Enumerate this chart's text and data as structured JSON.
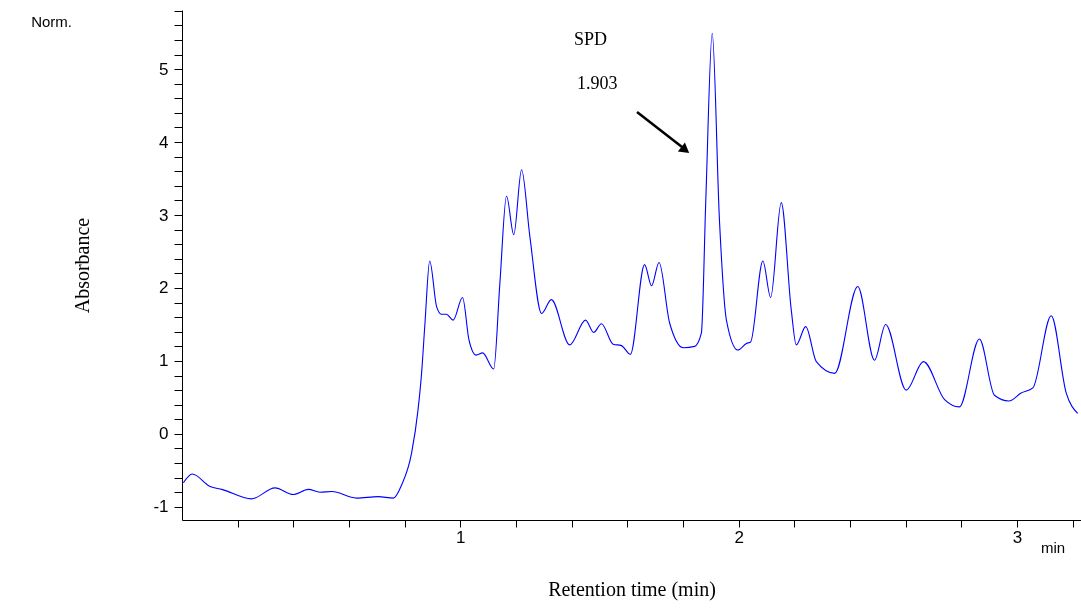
{
  "chart_data": {
    "type": "line",
    "xlabel": "Retention time (min)",
    "ylabel": "Absorbance",
    "xlim": [
      0,
      3.23
    ],
    "ylim": [
      -1.18,
      5.81
    ],
    "xticks": [
      {
        "value": 0.2,
        "label": null
      },
      {
        "value": 0.4,
        "label": null
      },
      {
        "value": 0.6,
        "label": null
      },
      {
        "value": 0.8,
        "label": null
      },
      1,
      {
        "value": 1.2,
        "label": null
      },
      {
        "value": 1.4,
        "label": null
      },
      {
        "value": 1.6,
        "label": null
      },
      {
        "value": 1.8,
        "label": null
      },
      2,
      {
        "value": 2.2,
        "label": null
      },
      {
        "value": 2.4,
        "label": null
      },
      {
        "value": 2.6,
        "label": null
      },
      {
        "value": 2.8,
        "label": null
      },
      3,
      {
        "value": 3.2,
        "label": null
      }
    ],
    "yticks": [
      -1,
      {
        "value": -0.8,
        "label": null
      },
      {
        "value": -0.6,
        "label": null
      },
      {
        "value": -0.4,
        "label": null
      },
      {
        "value": -0.2,
        "label": null
      },
      0,
      {
        "value": 0.2,
        "label": null
      },
      {
        "value": 0.4,
        "label": null
      },
      {
        "value": 0.6,
        "label": null
      },
      {
        "value": 0.8,
        "label": null
      },
      1,
      {
        "value": 1.2,
        "label": null
      },
      {
        "value": 1.4,
        "label": null
      },
      {
        "value": 1.6,
        "label": null
      },
      {
        "value": 1.8,
        "label": null
      },
      2,
      {
        "value": 2.2,
        "label": null
      },
      {
        "value": 2.4,
        "label": null
      },
      {
        "value": 2.6,
        "label": null
      },
      {
        "value": 2.8,
        "label": null
      },
      3,
      {
        "value": 3.2,
        "label": null
      },
      {
        "value": 3.4,
        "label": null
      },
      {
        "value": 3.6,
        "label": null
      },
      {
        "value": 3.8,
        "label": null
      },
      4,
      {
        "value": 4.2,
        "label": null
      },
      {
        "value": 4.4,
        "label": null
      },
      {
        "value": 4.6,
        "label": null
      },
      {
        "value": 4.8,
        "label": null
      },
      5,
      {
        "value": 5.2,
        "label": null
      },
      {
        "value": 5.4,
        "label": null
      },
      {
        "value": 5.6,
        "label": null
      },
      {
        "value": 5.8,
        "label": null
      }
    ],
    "series": [
      {
        "color": "#0000ff",
        "x": [
          0.005,
          0.037,
          0.101,
          0.143,
          0.25,
          0.334,
          0.4,
          0.454,
          0.496,
          0.538,
          0.627,
          0.705,
          0.759,
          0.789,
          0.825,
          0.848,
          0.861,
          0.873,
          0.89,
          0.915,
          0.932,
          0.95,
          0.974,
          1.008,
          1.031,
          1.057,
          1.08,
          1.12,
          1.142,
          1.166,
          1.192,
          1.22,
          1.25,
          1.292,
          1.327,
          1.393,
          1.45,
          1.479,
          1.507,
          1.549,
          1.579,
          1.611,
          1.662,
          1.687,
          1.714,
          1.752,
          1.802,
          1.842,
          1.866,
          1.882,
          1.905,
          1.931,
          1.956,
          1.997,
          2.028,
          2.043,
          2.087,
          2.115,
          2.153,
          2.189,
          2.207,
          2.241,
          2.279,
          2.345,
          2.428,
          2.488,
          2.528,
          2.602,
          2.664,
          2.74,
          2.793,
          2.865,
          2.919,
          2.971,
          3.015,
          3.057,
          3.123,
          3.177,
          3.218
        ],
        "values": [
          -0.67,
          -0.55,
          -0.72,
          -0.76,
          -0.89,
          -0.74,
          -0.83,
          -0.76,
          -0.8,
          -0.79,
          -0.88,
          -0.86,
          -0.88,
          -0.7,
          -0.26,
          0.33,
          0.84,
          1.52,
          2.37,
          1.74,
          1.64,
          1.64,
          1.56,
          1.87,
          1.29,
          1.08,
          1.11,
          0.89,
          2.06,
          3.26,
          2.73,
          3.62,
          2.7,
          1.65,
          1.84,
          1.22,
          1.56,
          1.39,
          1.51,
          1.23,
          1.21,
          1.09,
          2.32,
          2.03,
          2.35,
          1.52,
          1.18,
          1.2,
          1.38,
          3.21,
          5.49,
          2.93,
          1.56,
          1.15,
          1.24,
          1.26,
          2.37,
          1.87,
          3.17,
          1.7,
          1.22,
          1.47,
          0.99,
          0.83,
          2.02,
          1.01,
          1.5,
          0.6,
          0.99,
          0.47,
          0.37,
          1.3,
          0.53,
          0.45,
          0.56,
          0.63,
          1.62,
          0.56,
          0.28
        ]
      }
    ],
    "annotations": [
      "Norm.",
      "min",
      "SPD",
      "1.903"
    ]
  }
}
